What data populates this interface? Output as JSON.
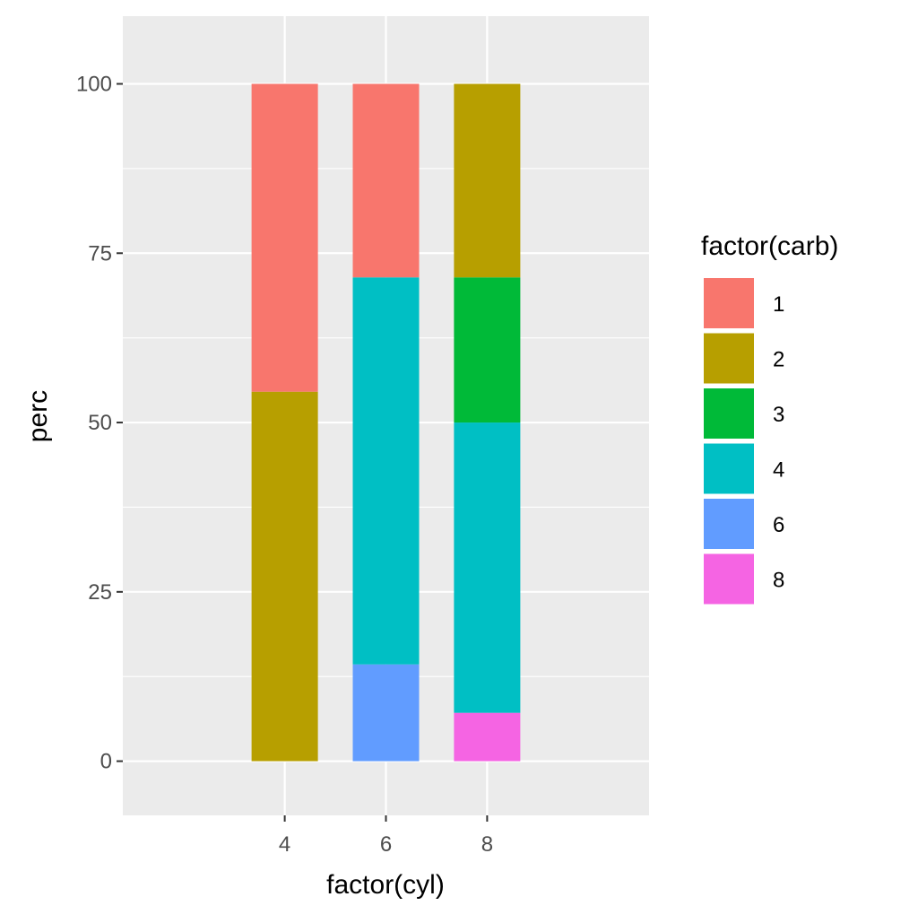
{
  "chart_data": {
    "type": "bar",
    "stacked": true,
    "title": "",
    "xlabel": "factor(cyl)",
    "ylabel": "perc",
    "categories": [
      "4",
      "6",
      "8"
    ],
    "ylim": [
      -8,
      110
    ],
    "yticks": [
      0,
      25,
      50,
      75,
      100
    ],
    "yticks_labels": [
      "0",
      "25",
      "50",
      "75",
      "100"
    ],
    "grid": true,
    "legend": {
      "title": "factor(carb)",
      "position": "right",
      "items": [
        {
          "label": "1",
          "color": "#F8766D"
        },
        {
          "label": "2",
          "color": "#B79F00"
        },
        {
          "label": "3",
          "color": "#00BA38"
        },
        {
          "label": "4",
          "color": "#00BFC4"
        },
        {
          "label": "6",
          "color": "#619CFF"
        },
        {
          "label": "8",
          "color": "#F564E3"
        }
      ]
    },
    "series": [
      {
        "name": "1",
        "color": "#F8766D",
        "values": [
          45.45,
          28.57,
          0
        ]
      },
      {
        "name": "2",
        "color": "#B79F00",
        "values": [
          54.55,
          0,
          28.57
        ]
      },
      {
        "name": "3",
        "color": "#00BA38",
        "values": [
          0,
          0,
          21.43
        ]
      },
      {
        "name": "4",
        "color": "#00BFC4",
        "values": [
          0,
          57.14,
          42.86
        ]
      },
      {
        "name": "6",
        "color": "#619CFF",
        "values": [
          0,
          14.29,
          0
        ]
      },
      {
        "name": "8",
        "color": "#F564E3",
        "values": [
          0,
          0,
          7.14
        ]
      }
    ],
    "stack_order_bottom_to_top": [
      "8",
      "6",
      "4",
      "3",
      "2",
      "1"
    ],
    "panel_color": "#EBEBEB",
    "grid_color": "#FFFFFF"
  }
}
